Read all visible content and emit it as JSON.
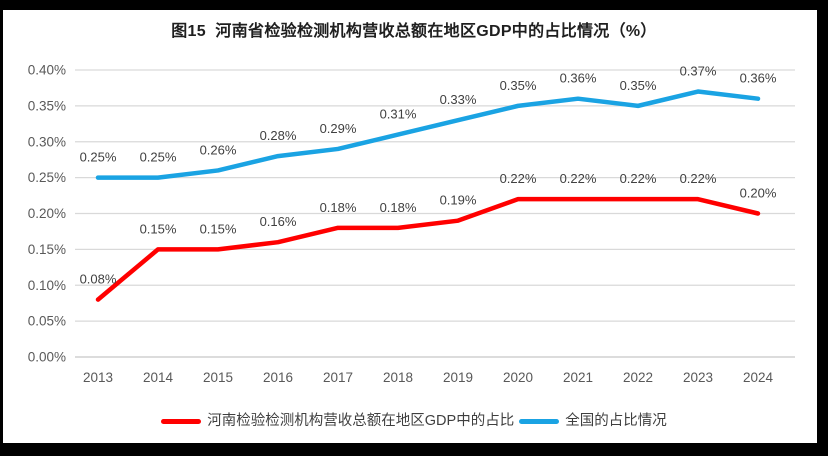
{
  "title": "图15  河南省检验检测机构营收总额在地区GDP中的占比情况（%）",
  "chart_data": {
    "type": "line",
    "title": "图15  河南省检验检测机构营收总额在地区GDP中的占比情况（%）",
    "categories": [
      "2013",
      "2014",
      "2015",
      "2016",
      "2017",
      "2018",
      "2019",
      "2020",
      "2021",
      "2022",
      "2023",
      "2024"
    ],
    "series": [
      {
        "name": "河南检验检测机构营收总额在地区GDP中的占比",
        "color": "#FF0000",
        "values": [
          0.08,
          0.15,
          0.15,
          0.16,
          0.18,
          0.18,
          0.19,
          0.22,
          0.22,
          0.22,
          0.22,
          0.2
        ],
        "data_labels": [
          "0.08%",
          "0.15%",
          "0.15%",
          "0.16%",
          "0.18%",
          "0.18%",
          "0.19%",
          "0.22%",
          "0.22%",
          "0.22%",
          "0.22%",
          "0.20%"
        ]
      },
      {
        "name": "全国的占比情况",
        "color": "#1AA3E3",
        "values": [
          0.25,
          0.25,
          0.26,
          0.28,
          0.29,
          0.31,
          0.33,
          0.35,
          0.36,
          0.35,
          0.37,
          0.36
        ],
        "data_labels": [
          "0.25%",
          "0.25%",
          "0.26%",
          "0.28%",
          "0.29%",
          "0.31%",
          "0.33%",
          "0.35%",
          "0.36%",
          "0.35%",
          "0.37%",
          "0.36%"
        ]
      }
    ],
    "xlabel": "",
    "ylabel": "",
    "ylim": [
      0,
      0.4
    ],
    "y_tick_step": 0.05,
    "y_ticks": [
      "0.00%",
      "0.05%",
      "0.10%",
      "0.15%",
      "0.20%",
      "0.25%",
      "0.30%",
      "0.35%",
      "0.40%"
    ],
    "grid": "horizontal",
    "legend_position": "bottom",
    "colors": {
      "grid_line": "#D9D9D9",
      "baseline": "#C6C6C6",
      "axis_tick_text": "#595959",
      "data_label_text": "#404040",
      "title_text": "#1F1F1F",
      "frame": "#000000",
      "plot_background": "#FFFFFF"
    }
  }
}
